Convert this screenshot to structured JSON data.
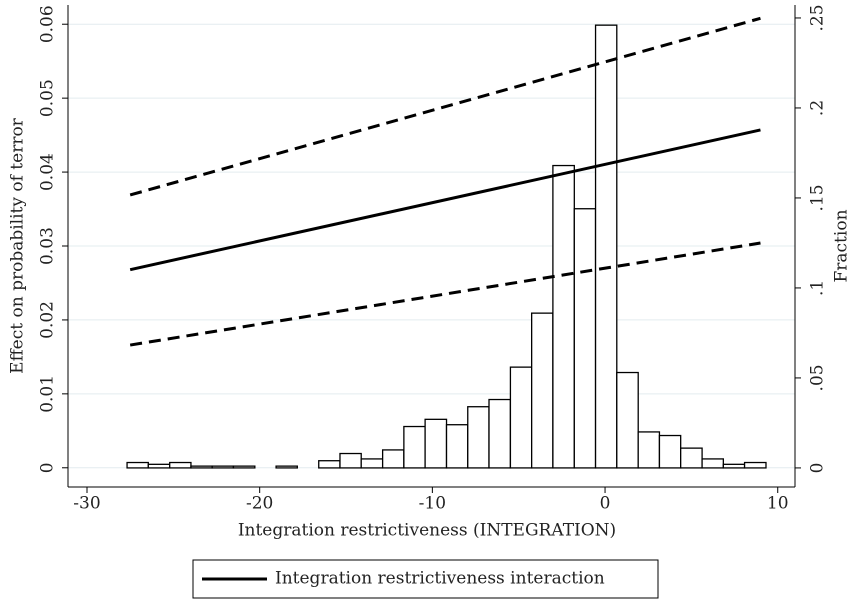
{
  "chart_data": {
    "type": "line",
    "x_label": "Integration restrictiveness (INTEGRATION)",
    "y_label": "Effect on probability of terror",
    "y2_label": "Fraction",
    "x": [
      -27.5,
      9
    ],
    "series": [
      {
        "name": "Integration restrictiveness interaction",
        "color": "#000000",
        "values": [
          0.0268,
          0.0457
        ]
      }
    ],
    "confidence_band": {
      "color": "#000000",
      "upper": [
        0.0369,
        0.0608
      ],
      "lower": [
        0.0166,
        0.0304
      ]
    },
    "histogram": {
      "axis": "y2",
      "color": "#000000",
      "bins": [
        -27.68,
        -26.45,
        -25.21,
        -23.98,
        -22.75,
        -21.52,
        -20.28,
        -19.05,
        -17.82,
        -16.58,
        -15.35,
        -14.12,
        -12.88,
        -11.65,
        -10.42,
        -9.18,
        -7.95,
        -6.72,
        -5.48,
        -4.25,
        -3.02,
        -1.78,
        -0.55,
        0.68,
        1.92,
        3.15,
        4.38,
        5.62,
        6.85,
        8.08,
        9.32
      ],
      "values": [
        0.003,
        0.002,
        0.003,
        0.001,
        0.001,
        0.001,
        0,
        0.001,
        0,
        0.004,
        0.008,
        0.005,
        0.01,
        0.023,
        0.027,
        0.024,
        0.034,
        0.038,
        0.056,
        0.086,
        0.168,
        0.144,
        0.246,
        0.053,
        0.02,
        0.018,
        0.011,
        0.005,
        0.002,
        0.003
      ]
    },
    "xlim": [
      -31.1,
      11.0
    ],
    "xticks": [
      -30,
      -20,
      -10,
      0,
      10
    ],
    "ylim": [
      -0.0026,
      0.0626
    ],
    "yticks": [
      0,
      0.01,
      0.02,
      0.03,
      0.04,
      0.05,
      0.06
    ],
    "y2lim": [
      -0.0106,
      0.2572
    ],
    "y2ticks": [
      {
        "value": 0,
        "label": "0"
      },
      {
        "value": 0.05,
        "label": ".05"
      },
      {
        "value": 0.1,
        "label": ".1"
      },
      {
        "value": 0.15,
        "label": ".15"
      },
      {
        "value": 0.2,
        "label": ".2"
      },
      {
        "value": 0.25,
        "label": ".25"
      }
    ],
    "grid": true
  }
}
